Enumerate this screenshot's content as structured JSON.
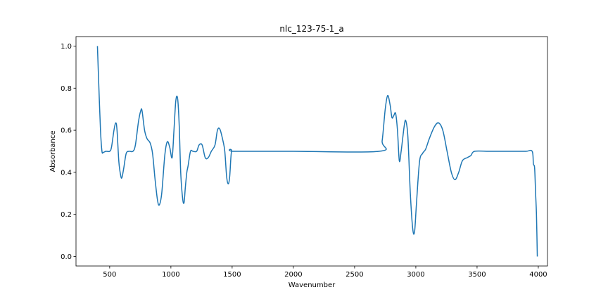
{
  "chart_data": {
    "type": "line",
    "title": "nlc_123-75-1_a",
    "xlabel": "Wavenumber",
    "ylabel": "Absorbance",
    "xlim": [
      225,
      4075
    ],
    "ylim": [
      -0.045,
      1.045
    ],
    "grid": false,
    "xticks": [
      500,
      1000,
      1500,
      2000,
      2500,
      3000,
      3500,
      4000
    ],
    "yticks": [
      0.0,
      0.2,
      0.4,
      0.6,
      0.8,
      1.0
    ],
    "series": [
      {
        "color": "#1f77b4",
        "points": [
          [
            400,
            1.0
          ],
          [
            412,
            0.8
          ],
          [
            425,
            0.6
          ],
          [
            437,
            0.5
          ],
          [
            448,
            0.495
          ],
          [
            470,
            0.5
          ],
          [
            500,
            0.5
          ],
          [
            515,
            0.52
          ],
          [
            535,
            0.6
          ],
          [
            550,
            0.635
          ],
          [
            560,
            0.6
          ],
          [
            575,
            0.45
          ],
          [
            590,
            0.385
          ],
          [
            600,
            0.375
          ],
          [
            615,
            0.42
          ],
          [
            635,
            0.49
          ],
          [
            660,
            0.5
          ],
          [
            690,
            0.5
          ],
          [
            710,
            0.53
          ],
          [
            735,
            0.64
          ],
          [
            755,
            0.695
          ],
          [
            765,
            0.69
          ],
          [
            785,
            0.6
          ],
          [
            805,
            0.56
          ],
          [
            830,
            0.54
          ],
          [
            850,
            0.49
          ],
          [
            870,
            0.37
          ],
          [
            890,
            0.27
          ],
          [
            905,
            0.245
          ],
          [
            925,
            0.3
          ],
          [
            950,
            0.48
          ],
          [
            970,
            0.545
          ],
          [
            990,
            0.52
          ],
          [
            1010,
            0.47
          ],
          [
            1025,
            0.6
          ],
          [
            1040,
            0.74
          ],
          [
            1055,
            0.75
          ],
          [
            1068,
            0.62
          ],
          [
            1080,
            0.4
          ],
          [
            1095,
            0.28
          ],
          [
            1107,
            0.255
          ],
          [
            1118,
            0.33
          ],
          [
            1130,
            0.4
          ],
          [
            1140,
            0.43
          ],
          [
            1160,
            0.5
          ],
          [
            1180,
            0.5
          ],
          [
            1210,
            0.5
          ],
          [
            1230,
            0.53
          ],
          [
            1255,
            0.53
          ],
          [
            1280,
            0.47
          ],
          [
            1305,
            0.47
          ],
          [
            1330,
            0.5
          ],
          [
            1360,
            0.53
          ],
          [
            1380,
            0.6
          ],
          [
            1400,
            0.605
          ],
          [
            1425,
            0.55
          ],
          [
            1440,
            0.5
          ],
          [
            1455,
            0.38
          ],
          [
            1468,
            0.345
          ],
          [
            1480,
            0.38
          ],
          [
            1495,
            0.5
          ],
          [
            1520,
            0.5
          ],
          [
            2000,
            0.5
          ],
          [
            2700,
            0.5
          ],
          [
            2725,
            0.55
          ],
          [
            2750,
            0.7
          ],
          [
            2770,
            0.765
          ],
          [
            2790,
            0.72
          ],
          [
            2805,
            0.66
          ],
          [
            2820,
            0.67
          ],
          [
            2835,
            0.68
          ],
          [
            2850,
            0.6
          ],
          [
            2865,
            0.455
          ],
          [
            2880,
            0.5
          ],
          [
            2905,
            0.62
          ],
          [
            2918,
            0.645
          ],
          [
            2935,
            0.57
          ],
          [
            2955,
            0.3
          ],
          [
            2975,
            0.13
          ],
          [
            2990,
            0.12
          ],
          [
            3005,
            0.25
          ],
          [
            3030,
            0.45
          ],
          [
            3055,
            0.49
          ],
          [
            3080,
            0.51
          ],
          [
            3110,
            0.56
          ],
          [
            3150,
            0.615
          ],
          [
            3185,
            0.635
          ],
          [
            3220,
            0.6
          ],
          [
            3255,
            0.5
          ],
          [
            3290,
            0.4
          ],
          [
            3320,
            0.365
          ],
          [
            3350,
            0.4
          ],
          [
            3380,
            0.455
          ],
          [
            3420,
            0.47
          ],
          [
            3450,
            0.48
          ],
          [
            3480,
            0.5
          ],
          [
            3600,
            0.5
          ],
          [
            3800,
            0.5
          ],
          [
            3900,
            0.5
          ],
          [
            3950,
            0.5
          ],
          [
            3960,
            0.44
          ],
          [
            3970,
            0.42
          ],
          [
            3978,
            0.3
          ],
          [
            3985,
            0.2
          ],
          [
            3992,
            0.0
          ]
        ]
      }
    ]
  }
}
